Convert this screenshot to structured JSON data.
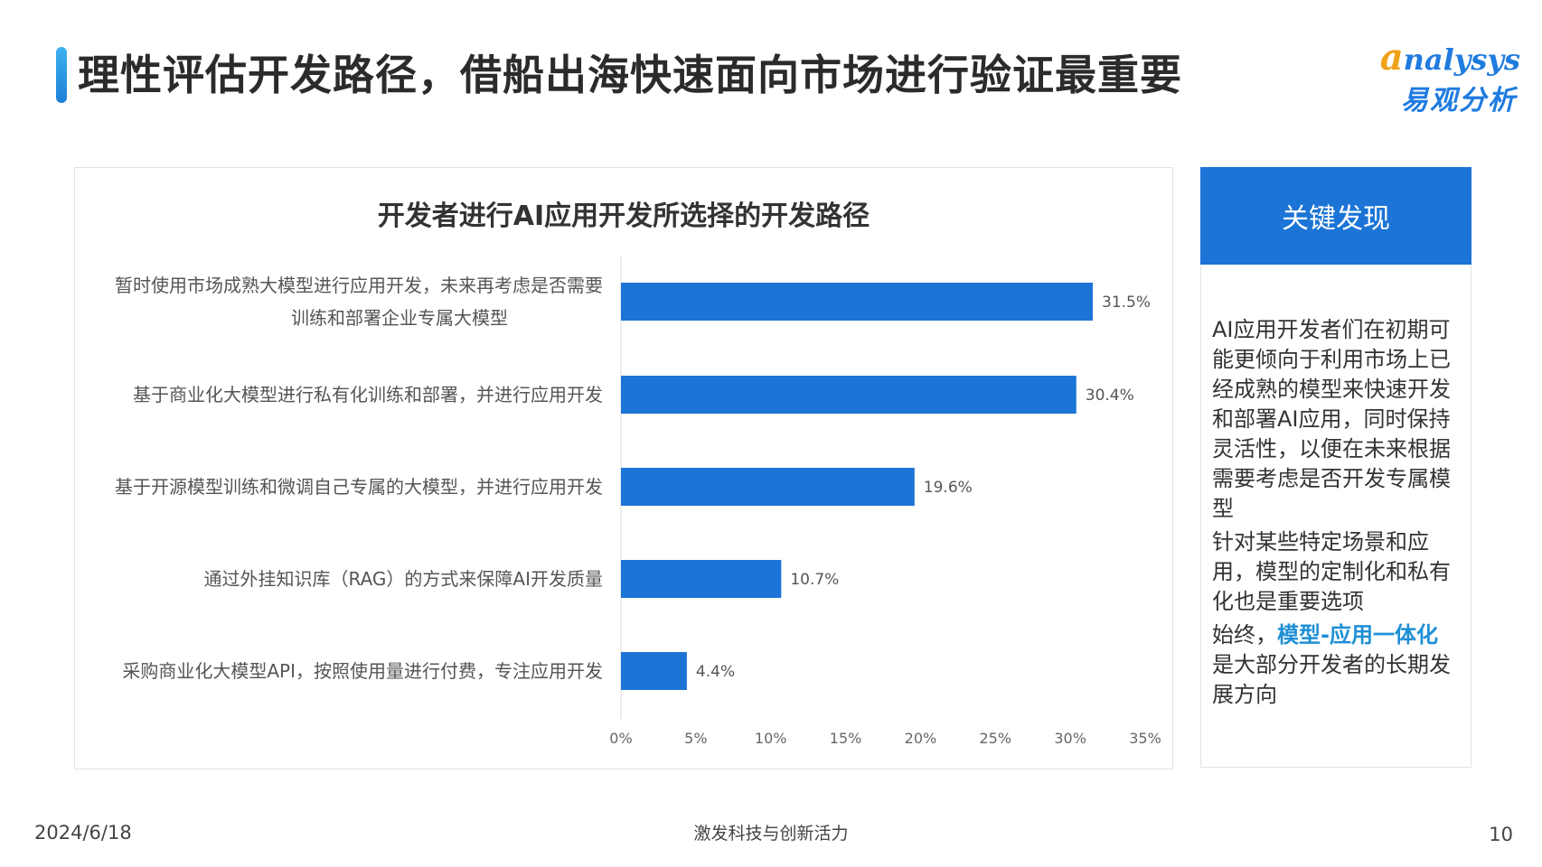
{
  "page": {
    "title": "理性评估开发路径，借船出海快速面向市场进行验证最重要",
    "logo": {
      "en_first": "a",
      "en_rest": "nalysys",
      "cn": "易观分析"
    },
    "footer": {
      "date": "2024/6/18",
      "center": "激发科技与创新活力",
      "page_number": "10"
    }
  },
  "key_findings": {
    "header": "关键发现",
    "paragraph1": "AI应用开发者们在初期可能更倾向于利用市场上已经成熟的模型来快速开发和部署AI应用，同时保持灵活性，以便在未来根据需要考虑是否开发专属模型",
    "paragraph2": "针对某些特定场景和应用，模型的定制化和私有化也是重要选项",
    "paragraph3_prefix": "始终，",
    "paragraph3_highlight": "模型-应用一体化",
    "paragraph3_suffix": "是大部分开发者的长期发展方向"
  },
  "chart_data": {
    "type": "bar",
    "orientation": "horizontal",
    "title": "开发者进行AI应用开发所选择的开发路径",
    "categories": [
      [
        "暂时使用市场成熟大模型进行应用开发，未来再考虑是否需要",
        "训练和部署企业专属大模型"
      ],
      [
        "基于商业化大模型进行私有化训练和部署，并进行应用开发"
      ],
      [
        "基于开源模型训练和微调自己专属的大模型，并进行应用开发"
      ],
      [
        "通过外挂知识库（RAG）的方式来保障AI开发质量"
      ],
      [
        "采购商业化大模型API，按照使用量进行付费，专注应用开发"
      ]
    ],
    "values": [
      31.5,
      30.4,
      19.6,
      10.7,
      4.4
    ],
    "value_labels": [
      "31.5%",
      "30.4%",
      "19.6%",
      "10.7%",
      "4.4%"
    ],
    "x_ticks": [
      "0%",
      "5%",
      "10%",
      "15%",
      "20%",
      "25%",
      "30%",
      "35%"
    ],
    "xlim": [
      0,
      35
    ],
    "bar_color": "#1c74d6",
    "grid": false
  }
}
